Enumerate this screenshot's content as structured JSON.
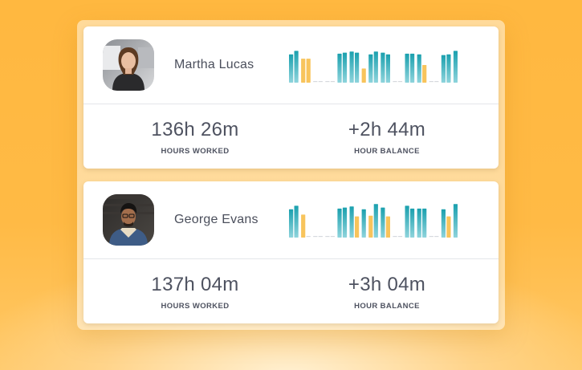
{
  "colors": {
    "background": "#FFB840",
    "bar_work": "#1AA0AE",
    "bar_extra": "#F8C45C",
    "bar_off": "#D6D9DE",
    "text": "#4E5260"
  },
  "employees": [
    {
      "name": "Martha Lucas",
      "avatar": "avatar-photo",
      "hours_worked": "136h 26m",
      "hours_worked_label": "HOURS WORKED",
      "hour_balance": "+2h 44m",
      "hour_balance_label": "HOUR BALANCE",
      "daily_bars": [
        [
          0.8,
          0.9
        ],
        [
          0.68,
          0.68
        ],
        [
          0,
          0
        ],
        [
          0,
          0
        ],
        [
          0.82,
          0.85
        ],
        [
          0.88,
          0.85
        ],
        [
          0.4
        ],
        [
          0.8,
          0.88
        ],
        [
          0.85,
          0.8
        ],
        [
          0,
          0
        ],
        [
          0.82,
          0.82
        ],
        [
          0.8,
          0.5
        ],
        [
          0,
          0
        ],
        [
          0.78,
          0.8
        ],
        [
          0.9
        ]
      ],
      "daily_bar_types": [
        [
          "work",
          "work"
        ],
        [
          "extra",
          "extra"
        ],
        [
          "off",
          "off"
        ],
        [
          "off",
          "off"
        ],
        [
          "work",
          "work"
        ],
        [
          "work",
          "work"
        ],
        [
          "extra"
        ],
        [
          "work",
          "work"
        ],
        [
          "work",
          "work"
        ],
        [
          "off",
          "off"
        ],
        [
          "work",
          "work"
        ],
        [
          "work",
          "extra"
        ],
        [
          "off",
          "off"
        ],
        [
          "work",
          "work"
        ],
        [
          "work"
        ]
      ]
    },
    {
      "name": "George Evans",
      "avatar": "avatar-photo",
      "hours_worked": "137h 04m",
      "hours_worked_label": "HOURS WORKED",
      "hour_balance": "+3h 04m",
      "hour_balance_label": "HOUR BALANCE",
      "daily_bars": [
        [
          0.8,
          0.9
        ],
        [
          0.65,
          0
        ],
        [
          0,
          0
        ],
        [
          0,
          0
        ],
        [
          0.82,
          0.85
        ],
        [
          0.88,
          0.6
        ],
        [
          0.8
        ],
        [
          0.62,
          0.95
        ],
        [
          0.85,
          0.6
        ],
        [
          0,
          0
        ],
        [
          0.9,
          0.82
        ],
        [
          0.82,
          0.82
        ],
        [
          0,
          0
        ],
        [
          0.8,
          0.6
        ],
        [
          0.95
        ]
      ],
      "daily_bar_types": [
        [
          "work",
          "work"
        ],
        [
          "extra",
          "off"
        ],
        [
          "off",
          "off"
        ],
        [
          "off",
          "off"
        ],
        [
          "work",
          "work"
        ],
        [
          "work",
          "extra"
        ],
        [
          "work"
        ],
        [
          "extra",
          "work"
        ],
        [
          "work",
          "extra"
        ],
        [
          "off",
          "off"
        ],
        [
          "work",
          "work"
        ],
        [
          "work",
          "work"
        ],
        [
          "off",
          "off"
        ],
        [
          "work",
          "extra"
        ],
        [
          "work"
        ]
      ]
    }
  ]
}
